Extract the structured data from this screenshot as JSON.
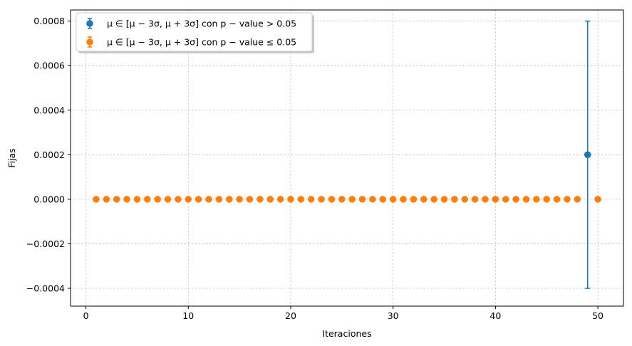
{
  "chart_data": {
    "type": "scatter",
    "xlabel": "Iteraciones",
    "ylabel": "Fijas",
    "xlim": [
      -1.5,
      52.5
    ],
    "ylim": [
      -0.00048,
      0.00085
    ],
    "xticks": [
      0,
      10,
      20,
      30,
      40,
      50
    ],
    "xtick_labels": [
      "0",
      "10",
      "20",
      "30",
      "40",
      "50"
    ],
    "yticks": [
      -0.0004,
      -0.0002,
      0.0,
      0.0002,
      0.0004,
      0.0006,
      0.0008
    ],
    "ytick_labels": [
      "−0.0004",
      "−0.0002",
      "0.0000",
      "0.0002",
      "0.0004",
      "0.0006",
      "0.0008"
    ],
    "grid": true,
    "legend_position": "top-left",
    "series": [
      {
        "name": "μ ∈ [μ − 3σ, μ + 3σ] con p − value > 0.05",
        "color": "#1f77b4",
        "points": [
          {
            "x": 49,
            "y": 0.0002,
            "yerr_low": -0.0004,
            "yerr_high": 0.0008
          }
        ]
      },
      {
        "name": "μ ∈ [μ − 3σ, μ + 3σ] con p − value ≤ 0.05",
        "color": "#ff7f0e",
        "points": [
          {
            "x": 1,
            "y": 0
          },
          {
            "x": 2,
            "y": 0
          },
          {
            "x": 3,
            "y": 0
          },
          {
            "x": 4,
            "y": 0
          },
          {
            "x": 5,
            "y": 0
          },
          {
            "x": 6,
            "y": 0
          },
          {
            "x": 7,
            "y": 0
          },
          {
            "x": 8,
            "y": 0
          },
          {
            "x": 9,
            "y": 0
          },
          {
            "x": 10,
            "y": 0
          },
          {
            "x": 11,
            "y": 0
          },
          {
            "x": 12,
            "y": 0
          },
          {
            "x": 13,
            "y": 0
          },
          {
            "x": 14,
            "y": 0
          },
          {
            "x": 15,
            "y": 0
          },
          {
            "x": 16,
            "y": 0
          },
          {
            "x": 17,
            "y": 0
          },
          {
            "x": 18,
            "y": 0
          },
          {
            "x": 19,
            "y": 0
          },
          {
            "x": 20,
            "y": 0
          },
          {
            "x": 21,
            "y": 0
          },
          {
            "x": 22,
            "y": 0
          },
          {
            "x": 23,
            "y": 0
          },
          {
            "x": 24,
            "y": 0
          },
          {
            "x": 25,
            "y": 0
          },
          {
            "x": 26,
            "y": 0
          },
          {
            "x": 27,
            "y": 0
          },
          {
            "x": 28,
            "y": 0
          },
          {
            "x": 29,
            "y": 0
          },
          {
            "x": 30,
            "y": 0
          },
          {
            "x": 31,
            "y": 0
          },
          {
            "x": 32,
            "y": 0
          },
          {
            "x": 33,
            "y": 0
          },
          {
            "x": 34,
            "y": 0
          },
          {
            "x": 35,
            "y": 0
          },
          {
            "x": 36,
            "y": 0
          },
          {
            "x": 37,
            "y": 0
          },
          {
            "x": 38,
            "y": 0
          },
          {
            "x": 39,
            "y": 0
          },
          {
            "x": 40,
            "y": 0
          },
          {
            "x": 41,
            "y": 0
          },
          {
            "x": 42,
            "y": 0
          },
          {
            "x": 43,
            "y": 0
          },
          {
            "x": 44,
            "y": 0
          },
          {
            "x": 45,
            "y": 0
          },
          {
            "x": 46,
            "y": 0
          },
          {
            "x": 47,
            "y": 0
          },
          {
            "x": 48,
            "y": 0
          },
          {
            "x": 50,
            "y": 0
          }
        ]
      }
    ]
  }
}
